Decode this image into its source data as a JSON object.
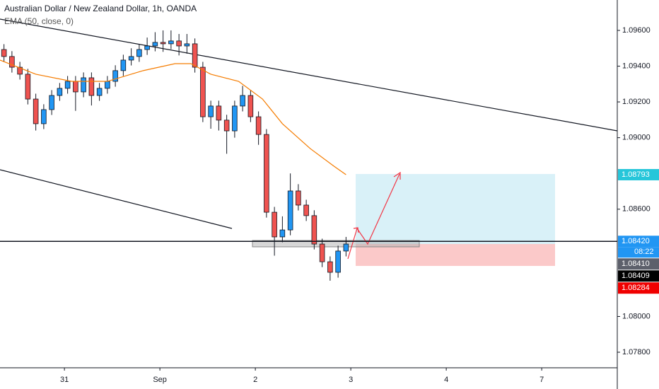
{
  "chart_data": {
    "type": "candlestick",
    "title": "Australian Dollar / New Zealand Dollar, 1h, OANDA",
    "x": [
      1,
      3,
      5,
      7,
      9,
      11,
      13,
      15,
      17,
      19,
      21,
      23,
      25,
      27,
      29,
      31,
      33,
      35,
      37,
      39,
      41,
      43,
      45,
      47,
      49,
      51,
      53,
      55,
      57,
      59,
      61,
      63,
      65,
      67,
      69,
      71,
      73,
      75,
      77,
      79,
      81,
      83,
      85,
      87
    ],
    "open": [
      1.09493,
      1.09454,
      1.09394,
      1.09355,
      1.09216,
      1.09078,
      1.09157,
      1.09236,
      1.09276,
      1.09315,
      1.09256,
      1.09335,
      1.09236,
      1.09276,
      1.09315,
      1.09375,
      1.09434,
      1.09454,
      1.09493,
      1.09513,
      1.09533,
      1.09525,
      1.09541,
      1.09513,
      1.09525,
      1.09394,
      1.09117,
      1.09177,
      1.09098,
      1.09038,
      1.09177,
      1.09236,
      1.09117,
      1.09018,
      1.08583,
      1.08445,
      1.08484,
      1.08702,
      1.08623,
      1.08564,
      1.08405,
      1.08306,
      1.08247,
      1.08366
    ],
    "high": [
      1.09523,
      1.09484,
      1.09424,
      1.09385,
      1.09246,
      1.09187,
      1.09266,
      1.09306,
      1.09345,
      1.09345,
      1.09365,
      1.09365,
      1.09306,
      1.09345,
      1.09405,
      1.09464,
      1.095,
      1.09523,
      1.0956,
      1.0959,
      1.096,
      1.096,
      1.0958,
      1.0958,
      1.09555,
      1.09424,
      1.09207,
      1.09207,
      1.09128,
      1.09207,
      1.0929,
      1.09266,
      1.09147,
      1.09048,
      1.08613,
      1.0856,
      1.088,
      1.0874,
      1.08653,
      1.08594,
      1.08435,
      1.08336,
      1.08396,
      1.08445
    ],
    "low": [
      1.09424,
      1.09364,
      1.09325,
      1.09186,
      1.0904,
      1.09048,
      1.09127,
      1.09206,
      1.09246,
      1.0915,
      1.09226,
      1.0918,
      1.09206,
      1.09246,
      1.09285,
      1.09345,
      1.09404,
      1.09424,
      1.09463,
      1.09483,
      1.0948,
      1.09495,
      1.0946,
      1.0947,
      1.09364,
      1.09087,
      1.0905,
      1.0904,
      1.0891,
      1.09,
      1.09147,
      1.09087,
      1.0896,
      1.08553,
      1.0834,
      1.08415,
      1.08454,
      1.08593,
      1.08534,
      1.08375,
      1.08276,
      1.082,
      1.08217,
      1.08336
    ],
    "close": [
      1.09454,
      1.09394,
      1.09355,
      1.09216,
      1.09078,
      1.09157,
      1.09236,
      1.09276,
      1.09315,
      1.09256,
      1.09335,
      1.09236,
      1.09276,
      1.09315,
      1.09375,
      1.09434,
      1.09454,
      1.09493,
      1.09513,
      1.09533,
      1.09525,
      1.09541,
      1.09513,
      1.09525,
      1.09394,
      1.09117,
      1.09177,
      1.09098,
      1.09038,
      1.09177,
      1.09236,
      1.09117,
      1.09018,
      1.08583,
      1.08445,
      1.08484,
      1.08702,
      1.08623,
      1.08564,
      1.08405,
      1.08306,
      1.08247,
      1.08366,
      1.08405
    ],
    "up_color": "#2196f3",
    "down_color": "#ef5350",
    "series": [
      {
        "name": "EMA (50, close, 0)",
        "color": "#f57c00",
        "x": [
          0,
          9,
          18,
          27,
          36,
          44,
          48,
          53,
          60,
          66,
          71,
          78,
          84,
          87
        ],
        "values": [
          1.09434,
          1.09355,
          1.09315,
          1.09315,
          1.09375,
          1.09414,
          1.09414,
          1.09355,
          1.09315,
          1.09216,
          1.09078,
          1.08939,
          1.0884,
          1.08793
        ]
      }
    ],
    "xlim": [
      0,
      155.2
    ],
    "xticks": [
      {
        "value": 16.2,
        "label": "31"
      },
      {
        "value": 40.2,
        "label": "Sep"
      },
      {
        "value": 64.2,
        "label": "2"
      },
      {
        "value": 88.2,
        "label": "3"
      },
      {
        "value": 112.2,
        "label": "4"
      },
      {
        "value": 136.2,
        "label": "7"
      }
    ],
    "ylim": [
      1.07713,
      1.0977
    ],
    "yticks": [
      {
        "value": 1.096,
        "label": "1.09600"
      },
      {
        "value": 1.094,
        "label": "1.09400"
      },
      {
        "value": 1.092,
        "label": "1.09200"
      },
      {
        "value": 1.09,
        "label": "1.09000"
      },
      {
        "value": 1.086,
        "label": "1.08600"
      },
      {
        "value": 1.08,
        "label": "1.08000"
      },
      {
        "value": 1.078,
        "label": "1.07800"
      }
    ],
    "grid": false,
    "price_tags": [
      {
        "value": 1.08793,
        "label": "1.08793",
        "color": "#26c6da"
      },
      {
        "value": 1.0842,
        "label": "1.08420",
        "color": "#2196f3"
      },
      {
        "value": 1.0841,
        "label": "1.08410",
        "color": "#5d606b"
      },
      {
        "value": 1.08409,
        "label": "1.08409",
        "color": "#000000"
      },
      {
        "value": 1.08284,
        "label": "1.08284",
        "color": "#f00000"
      }
    ],
    "countdown": "08:22"
  }
}
